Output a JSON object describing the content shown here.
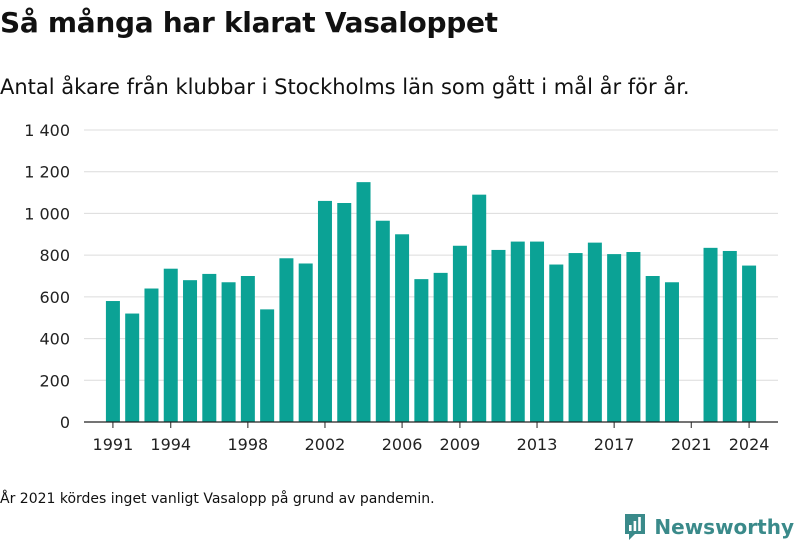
{
  "title": "Så många har klarat Vasaloppet",
  "subtitle": "Antal åkare från klubbar i Stockholms län som gått i mål år för år.",
  "footnote": "År 2021 kördes inget vanligt Vasalopp på grund av pandemin.",
  "brand": {
    "name": "Newsworthy",
    "icon": "newsworthy-logo-icon",
    "color": "#3a8a8a"
  },
  "chart_data": {
    "type": "bar",
    "color": "#0ba295",
    "x": [
      1991,
      1992,
      1993,
      1994,
      1995,
      1996,
      1997,
      1998,
      1999,
      2000,
      2001,
      2002,
      2003,
      2004,
      2005,
      2006,
      2007,
      2008,
      2009,
      2010,
      2011,
      2012,
      2013,
      2014,
      2015,
      2016,
      2017,
      2018,
      2019,
      2020,
      2021,
      2022,
      2023,
      2024
    ],
    "values": [
      580,
      520,
      640,
      735,
      680,
      710,
      670,
      700,
      540,
      785,
      760,
      1060,
      1050,
      1150,
      965,
      900,
      685,
      715,
      845,
      1090,
      825,
      865,
      865,
      755,
      810,
      860,
      805,
      815,
      700,
      670,
      null,
      835,
      820,
      750
    ],
    "x_ticks": [
      1991,
      1994,
      1998,
      2002,
      2006,
      2009,
      2013,
      2017,
      2021,
      2024
    ],
    "y_ticks": [
      0,
      200,
      400,
      600,
      800,
      1000,
      1200,
      1400
    ],
    "y_tick_labels": [
      "0",
      "200",
      "400",
      "600",
      "800",
      "1 000",
      "1 200",
      "1 400"
    ],
    "ylim": [
      0,
      1400
    ],
    "xlim": [
      1989.5,
      2025.5
    ],
    "grid": true,
    "legend": "none"
  }
}
